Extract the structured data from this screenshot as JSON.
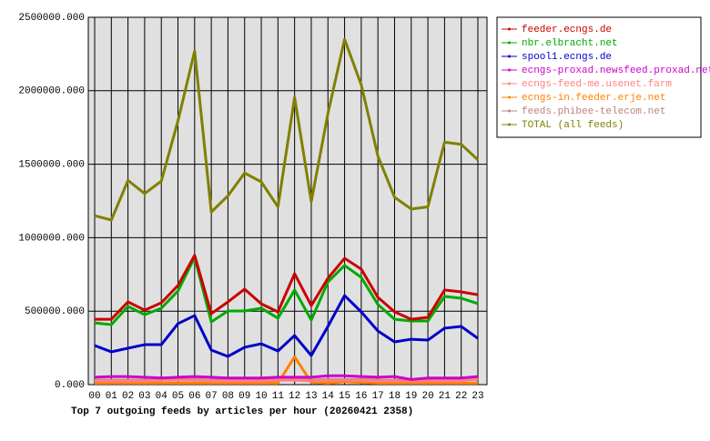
{
  "chart_data": {
    "type": "line",
    "title": "Top 7 outgoing feeds by articles per hour (20260421 2358)",
    "categories": [
      "00",
      "01",
      "02",
      "03",
      "04",
      "05",
      "06",
      "07",
      "08",
      "09",
      "10",
      "11",
      "12",
      "13",
      "14",
      "15",
      "16",
      "17",
      "18",
      "19",
      "20",
      "21",
      "22",
      "23"
    ],
    "ylim": [
      0,
      2500000
    ],
    "yticks": [
      {
        "value": 0,
        "label": "0.000"
      },
      {
        "value": 500000,
        "label": "500000.000"
      },
      {
        "value": 1000000,
        "label": "1000000.000"
      },
      {
        "value": 1500000,
        "label": "1500000.000"
      },
      {
        "value": 2000000,
        "label": "2000000.000"
      },
      {
        "value": 2500000,
        "label": "2500000.000"
      }
    ],
    "grid": true,
    "legend": "right",
    "series": [
      {
        "name": "feeder.ecngs.de",
        "color": "#cc0000",
        "values": [
          445000,
          445000,
          563000,
          507000,
          557000,
          675000,
          880000,
          483000,
          563000,
          650000,
          550000,
          495000,
          755000,
          538000,
          724000,
          860000,
          786000,
          594000,
          495000,
          445000,
          458000,
          644000,
          631000,
          612000
        ]
      },
      {
        "name": "nbr.elbracht.net",
        "color": "#00aa00",
        "values": [
          420000,
          408000,
          532000,
          476000,
          520000,
          637000,
          866000,
          427000,
          501000,
          501000,
          520000,
          452000,
          644000,
          439000,
          699000,
          811000,
          730000,
          545000,
          445000,
          433000,
          433000,
          600000,
          588000,
          551000
        ]
      },
      {
        "name": "spool1.ecngs.de",
        "color": "#0000cc",
        "values": [
          266000,
          223000,
          248000,
          272000,
          272000,
          415000,
          470000,
          235000,
          192000,
          254000,
          278000,
          229000,
          334000,
          198000,
          396000,
          606000,
          495000,
          365000,
          291000,
          309000,
          303000,
          384000,
          396000,
          315000
        ]
      },
      {
        "name": "ecngs-proxad.newsfeed.proxad.net",
        "color": "#cc00cc",
        "values": [
          50000,
          55000,
          55000,
          50000,
          45000,
          50000,
          55000,
          50000,
          45000,
          45000,
          45000,
          50000,
          50000,
          50000,
          60000,
          60000,
          55000,
          50000,
          55000,
          35000,
          45000,
          45000,
          45000,
          55000
        ]
      },
      {
        "name": "ecngs-feed-me.usenet.farm",
        "color": "#ff8080",
        "values": [
          25000,
          25000,
          25000,
          25000,
          30000,
          30000,
          30000,
          25000,
          25000,
          25000,
          25000,
          30000,
          30000,
          25000,
          30000,
          30000,
          30000,
          25000,
          25000,
          25000,
          25000,
          25000,
          25000,
          40000
        ]
      },
      {
        "name": "ecngs-in.feeder.erje.net",
        "color": "#ff8000",
        "values": [
          10000,
          10000,
          10000,
          10000,
          10000,
          10000,
          10000,
          10000,
          10000,
          10000,
          10000,
          10000,
          190000,
          15000,
          10000,
          20000,
          15000,
          10000,
          10000,
          10000,
          10000,
          10000,
          10000,
          10000
        ]
      },
      {
        "name": "feeds.phibee-telecom.net",
        "color": "#c08080",
        "values": [
          30000,
          30000,
          30000,
          30000,
          30000,
          35000,
          35000,
          30000,
          30000,
          30000,
          30000,
          30000,
          35000,
          30000,
          35000,
          35000,
          35000,
          30000,
          30000,
          30000,
          30000,
          30000,
          30000,
          35000
        ]
      },
      {
        "name": "TOTAL (all feeds)",
        "color": "#808000",
        "values": [
          1150000,
          1120000,
          1390000,
          1300000,
          1385000,
          1795000,
          2270000,
          1175000,
          1285000,
          1440000,
          1380000,
          1210000,
          1955000,
          1245000,
          1845000,
          2350000,
          2040000,
          1555000,
          1275000,
          1195000,
          1210000,
          1650000,
          1635000,
          1530000
        ]
      }
    ]
  }
}
